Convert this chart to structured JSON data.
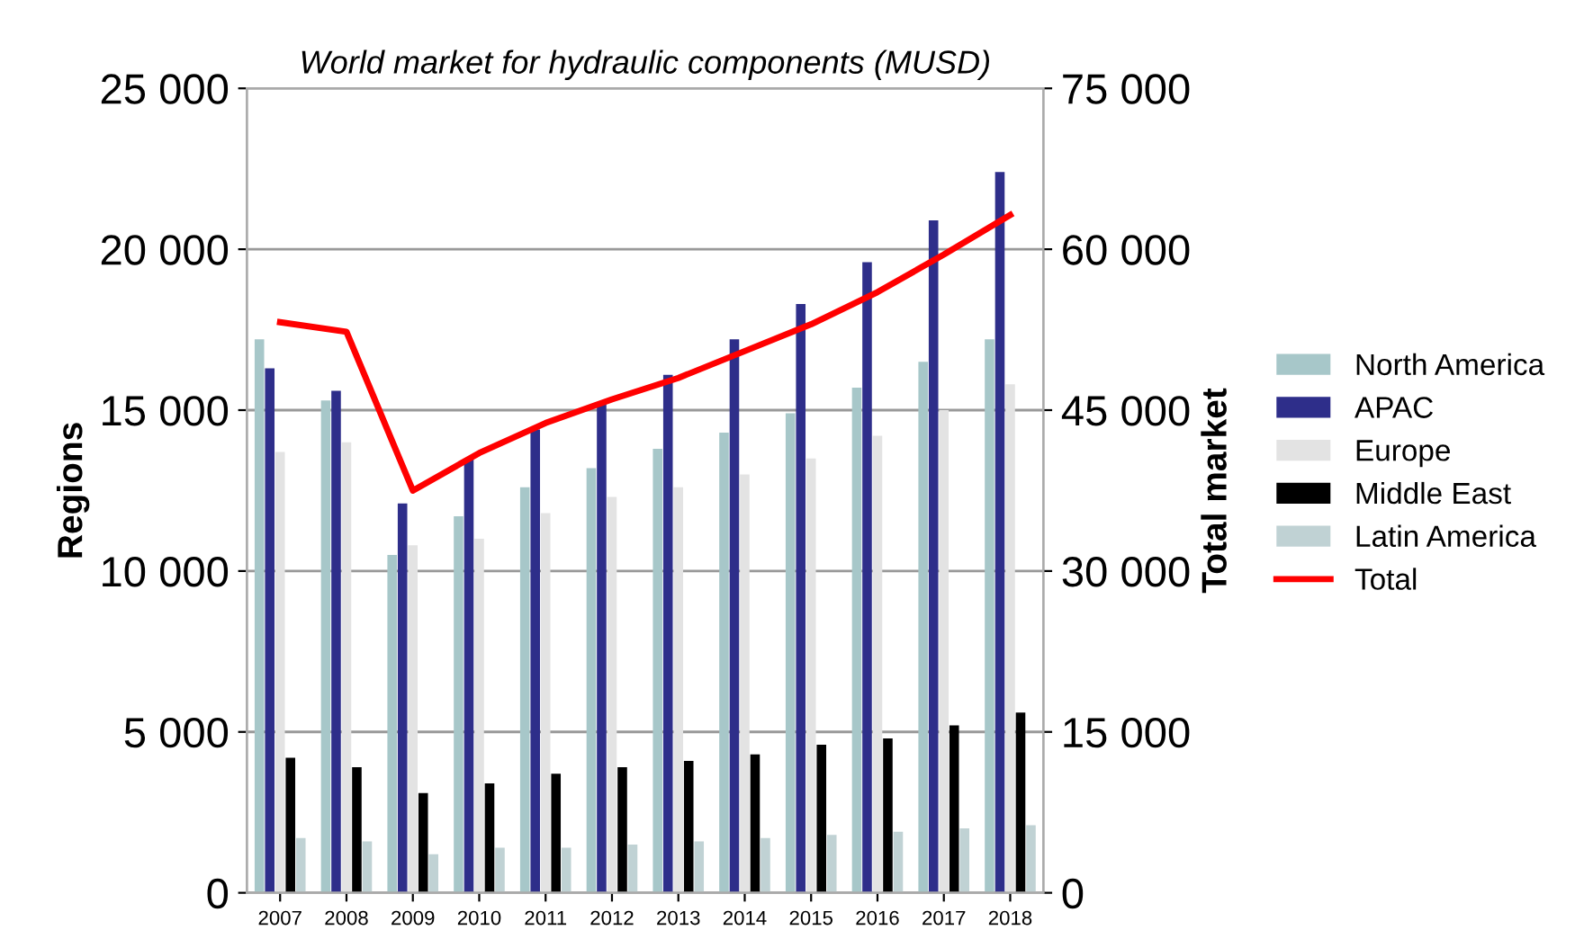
{
  "chart_data": {
    "type": "bar",
    "title": "World market for hydraulic components (MUSD)",
    "ylabel": "Regions",
    "y2label": "Total market",
    "categories": [
      "2007",
      "2008",
      "2009",
      "2010",
      "2011",
      "2012",
      "2013",
      "2014",
      "2015",
      "2016",
      "2017",
      "2018"
    ],
    "series": [
      {
        "name": "North America",
        "color": "#a7c7c9",
        "values": [
          17200,
          15300,
          10500,
          11700,
          12600,
          13200,
          13800,
          14300,
          14900,
          15700,
          16500,
          17200
        ]
      },
      {
        "name": "APAC",
        "color": "#2e2e8a",
        "values": [
          16300,
          15600,
          12100,
          13500,
          14400,
          15200,
          16100,
          17200,
          18300,
          19600,
          20900,
          22400
        ]
      },
      {
        "name": "Europe",
        "color": "#e3e3e3",
        "values": [
          13700,
          14000,
          10800,
          11000,
          11800,
          12300,
          12600,
          13000,
          13500,
          14200,
          15000,
          15800
        ]
      },
      {
        "name": "Middle East",
        "color": "#000000",
        "values": [
          4200,
          3900,
          3100,
          3400,
          3700,
          3900,
          4100,
          4300,
          4600,
          4800,
          5200,
          5600
        ]
      },
      {
        "name": "Latin America",
        "color": "#c0d2d4",
        "values": [
          1700,
          1600,
          1200,
          1400,
          1400,
          1500,
          1600,
          1700,
          1800,
          1900,
          2000,
          2100
        ]
      },
      {
        "name": "Total",
        "type": "line",
        "axis": "y2",
        "color": "#ff0000",
        "values": [
          53200,
          52300,
          37500,
          41000,
          43800,
          46000,
          48000,
          50500,
          53000,
          56000,
          59500,
          63200
        ]
      }
    ],
    "ylim": [
      0,
      25000
    ],
    "yticks": [
      0,
      {
        "value": 5000,
        "label": "5 000"
      },
      {
        "value": 10000,
        "label": "10 000"
      },
      {
        "value": 15000,
        "label": "15 000"
      },
      {
        "value": 20000,
        "label": "20 000"
      },
      {
        "value": 25000,
        "label": "25 000"
      }
    ],
    "y2lim": [
      0,
      75000
    ],
    "y2ticks": [
      0,
      {
        "value": 15000,
        "label": "15 000"
      },
      {
        "value": 30000,
        "label": "30 000"
      },
      {
        "value": 45000,
        "label": "45 000"
      },
      {
        "value": 60000,
        "label": "60 000"
      },
      {
        "value": 75000,
        "label": "75 000"
      }
    ],
    "grid": "y",
    "legend": "right",
    "marker": "none",
    "line_style": "solid"
  }
}
